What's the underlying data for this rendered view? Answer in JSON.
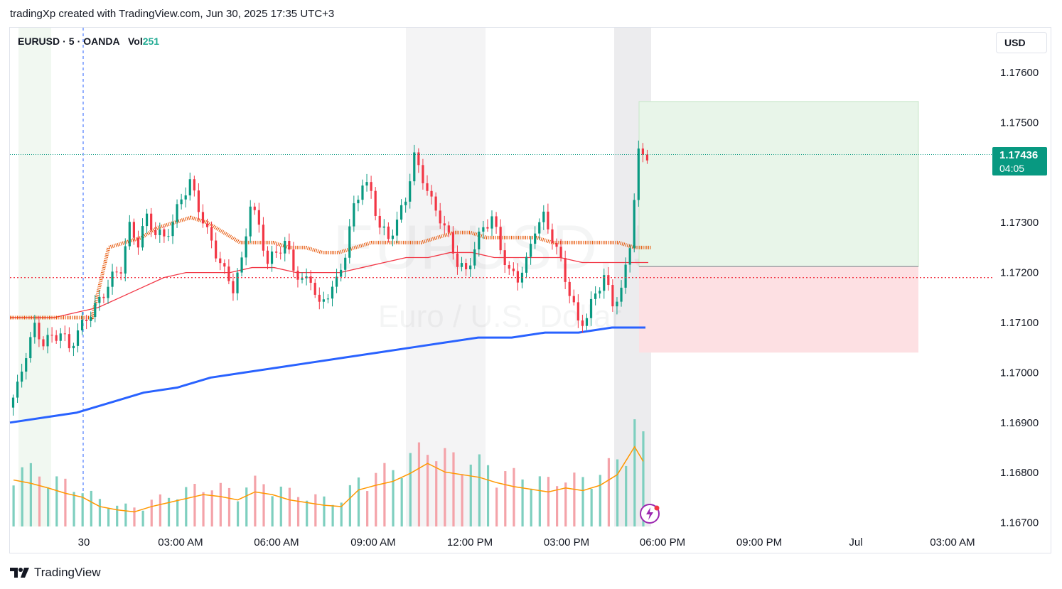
{
  "header": {
    "caption": "tradingXp created with TradingView.com, Jun 30, 2025 17:35 UTC+3"
  },
  "legend": {
    "symbol": "EURUSD",
    "interval": "5",
    "exchange": "OANDA",
    "vol_label": "Vol",
    "vol_value": "251"
  },
  "currency_button": "USD",
  "last_price": {
    "price": "1.17436",
    "countdown": "04:05"
  },
  "watermark": {
    "line1": "EURUSD, 5",
    "line2": "Euro / U.S. Dollar"
  },
  "footer": {
    "brand": "TradingView"
  },
  "colors": {
    "up": "#089981",
    "down": "#f23645",
    "ema_orange": "#e65100",
    "ma_red": "#f23645",
    "ma_blue": "#2962ff",
    "volume_ma": "#ff9800",
    "target_zone": "#e8f5e9",
    "stop_zone": "#fde0e3"
  },
  "chart_data": {
    "type": "candlestick",
    "ylim": [
      1.1668,
      1.1768
    ],
    "y_ticks": [
      "1.17600",
      "1.17500",
      "1.17300",
      "1.17200",
      "1.17100",
      "1.17000",
      "1.16900",
      "1.16800",
      "1.16700"
    ],
    "x_ticks": [
      "30",
      "03:00 AM",
      "06:00 AM",
      "09:00 AM",
      "12:00 PM",
      "03:00 PM",
      "06:00 PM",
      "09:00 PM",
      "Jul",
      "03:00 AM"
    ],
    "last_price": 1.17436,
    "horizontal_level": 1.1719,
    "position": {
      "entry": 1.17212,
      "target": 1.17542,
      "stop": 1.1704
    },
    "price_path": [
      [
        0,
        1.1693
      ],
      [
        1,
        1.1697
      ],
      [
        2,
        1.1704
      ],
      [
        3,
        1.1709
      ],
      [
        4,
        1.1706
      ],
      [
        5,
        1.1707
      ],
      [
        6,
        1.1708
      ],
      [
        7,
        1.1705
      ],
      [
        8,
        1.1708
      ],
      [
        9,
        1.1711
      ],
      [
        10,
        1.1713
      ],
      [
        11,
        1.1716
      ],
      [
        12,
        1.1719
      ],
      [
        13,
        1.1721
      ],
      [
        14,
        1.1729
      ],
      [
        15,
        1.1726
      ],
      [
        16,
        1.1731
      ],
      [
        17,
        1.1728
      ],
      [
        18,
        1.1727
      ],
      [
        19,
        1.173
      ],
      [
        20,
        1.1735
      ],
      [
        21,
        1.1738
      ],
      [
        22,
        1.1733
      ],
      [
        23,
        1.1728
      ],
      [
        24,
        1.1724
      ],
      [
        25,
        1.172
      ],
      [
        26,
        1.1717
      ],
      [
        27,
        1.1722
      ],
      [
        28,
        1.1734
      ],
      [
        29,
        1.1729
      ],
      [
        30,
        1.1722
      ],
      [
        31,
        1.1724
      ],
      [
        32,
        1.1726
      ],
      [
        33,
        1.1721
      ],
      [
        34,
        1.1718
      ],
      [
        35,
        1.1719
      ],
      [
        36,
        1.1713
      ],
      [
        37,
        1.1716
      ],
      [
        38,
        1.1718
      ],
      [
        39,
        1.1724
      ],
      [
        40,
        1.1733
      ],
      [
        41,
        1.1738
      ],
      [
        42,
        1.1736
      ],
      [
        43,
        1.1729
      ],
      [
        44,
        1.1727
      ],
      [
        45,
        1.173
      ],
      [
        46,
        1.1735
      ],
      [
        47,
        1.1743
      ],
      [
        48,
        1.1739
      ],
      [
        49,
        1.1734
      ],
      [
        50,
        1.1731
      ],
      [
        51,
        1.1727
      ],
      [
        52,
        1.1722
      ],
      [
        53,
        1.172
      ],
      [
        54,
        1.1725
      ],
      [
        55,
        1.1729
      ],
      [
        56,
        1.1731
      ],
      [
        57,
        1.1725
      ],
      [
        58,
        1.172
      ],
      [
        59,
        1.1719
      ],
      [
        60,
        1.1722
      ],
      [
        61,
        1.1729
      ],
      [
        62,
        1.1731
      ],
      [
        63,
        1.1727
      ],
      [
        64,
        1.1722
      ],
      [
        65,
        1.1716
      ],
      [
        66,
        1.171
      ],
      [
        67,
        1.1711
      ],
      [
        68,
        1.1716
      ],
      [
        69,
        1.1719
      ],
      [
        70,
        1.1714
      ],
      [
        71,
        1.1716
      ],
      [
        72,
        1.1726
      ],
      [
        73,
        1.17436
      ]
    ],
    "volume": [
      [
        0,
        70
      ],
      [
        2,
        65
      ],
      [
        4,
        58
      ],
      [
        6,
        50
      ],
      [
        8,
        44
      ],
      [
        10,
        30
      ],
      [
        12,
        25
      ],
      [
        14,
        22
      ],
      [
        16,
        30
      ],
      [
        18,
        36
      ],
      [
        20,
        42
      ],
      [
        22,
        48
      ],
      [
        24,
        45
      ],
      [
        26,
        40
      ],
      [
        28,
        52
      ],
      [
        30,
        48
      ],
      [
        32,
        40
      ],
      [
        34,
        36
      ],
      [
        36,
        32
      ],
      [
        38,
        30
      ],
      [
        40,
        55
      ],
      [
        42,
        62
      ],
      [
        44,
        68
      ],
      [
        46,
        80
      ],
      [
        48,
        95
      ],
      [
        50,
        82
      ],
      [
        52,
        78
      ],
      [
        54,
        74
      ],
      [
        56,
        66
      ],
      [
        58,
        60
      ],
      [
        60,
        56
      ],
      [
        62,
        52
      ],
      [
        64,
        58
      ],
      [
        66,
        54
      ],
      [
        68,
        62
      ],
      [
        70,
        78
      ],
      [
        72,
        120
      ],
      [
        73,
        98
      ]
    ],
    "series": [
      {
        "name": "EMA",
        "values": [
          1.1711,
          1.1711,
          1.1711,
          1.1711,
          1.1711,
          1.1711,
          1.1725,
          1.1726,
          1.1727,
          1.1729,
          1.173,
          1.1731,
          1.173,
          1.1728,
          1.1726,
          1.1726,
          1.1726,
          1.1725,
          1.1725,
          1.1724,
          1.1724,
          1.1725,
          1.1726,
          1.1726,
          1.1726,
          1.1726,
          1.1727,
          1.1728,
          1.1728,
          1.1727,
          1.1727,
          1.1727,
          1.1727,
          1.1726,
          1.1726,
          1.1726,
          1.1726,
          1.1726,
          1.1725,
          1.1725
        ]
      },
      {
        "name": "SMA",
        "values": [
          1.1711,
          1.1711,
          1.1711,
          1.1712,
          1.1713,
          1.1715,
          1.1717,
          1.1719,
          1.172,
          1.172,
          1.172,
          1.1721,
          1.1721,
          1.172,
          1.172,
          1.172,
          1.1721,
          1.1722,
          1.1723,
          1.1723,
          1.1724,
          1.1724,
          1.1723,
          1.1723,
          1.1723,
          1.1723,
          1.1722,
          1.1722,
          1.1722,
          1.1722
        ]
      },
      {
        "name": "Long MA",
        "values": [
          1.169,
          1.1691,
          1.1692,
          1.1694,
          1.1696,
          1.1697,
          1.1699,
          1.17,
          1.1701,
          1.1702,
          1.1703,
          1.1704,
          1.1705,
          1.1706,
          1.1707,
          1.1707,
          1.1708,
          1.1708,
          1.1709,
          1.1709
        ]
      }
    ]
  }
}
